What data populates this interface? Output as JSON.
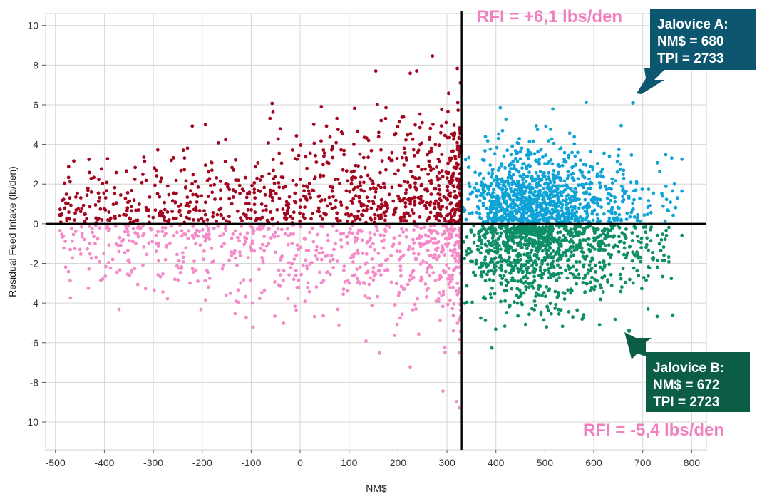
{
  "chart_data": {
    "type": "scatter",
    "xlabel": "NM$",
    "ylabel": "Residual Feed Intake (lb/den)",
    "xlim": [
      -520,
      830
    ],
    "ylim": [
      -11.4,
      10.6
    ],
    "xticks": [
      "-500",
      "-400",
      "-300",
      "-200",
      "-100",
      "0",
      "100",
      "200",
      "300",
      "400",
      "500",
      "600",
      "700",
      "800"
    ],
    "yticks": [
      "10",
      "8",
      "6",
      "4",
      "2",
      "0",
      "-2",
      "-4",
      "-6",
      "-8",
      "-10"
    ],
    "xtick_values": [
      -500,
      -400,
      -300,
      -200,
      -100,
      0,
      100,
      200,
      300,
      400,
      500,
      600,
      700,
      800
    ],
    "ytick_values": [
      10,
      8,
      6,
      4,
      2,
      0,
      -2,
      -4,
      -6,
      -8,
      -10
    ],
    "grid": true,
    "divider_x": 330,
    "divider_y": 0,
    "quadrant_colors": {
      "upper_left": "#a3071f",
      "lower_left": "#f48ac8",
      "upper_right": "#10a3d8",
      "lower_right": "#0d8e66"
    },
    "points_per_quadrant": {
      "upper_left": 900,
      "lower_left": 720,
      "upper_right": 1050,
      "lower_right": 1000
    },
    "highlighted_points": [
      {
        "x": 680,
        "y": 6.1
      },
      {
        "x": 672,
        "y": -5.4
      }
    ],
    "annotations": {
      "rfi_top": "RFI = +6,1 lbs/den",
      "rfi_bottom": "RFI = -5,4 lbs/den",
      "box_a": {
        "line1": "Jalovice A:",
        "line2": "NM$ = 680",
        "line3": "TPI = 2733",
        "color": "#0d5670"
      },
      "box_b": {
        "line1": "Jalovice B:",
        "line2": "NM$ = 672",
        "line3": "TPI = 2723",
        "color": "#0b5e45"
      }
    }
  }
}
